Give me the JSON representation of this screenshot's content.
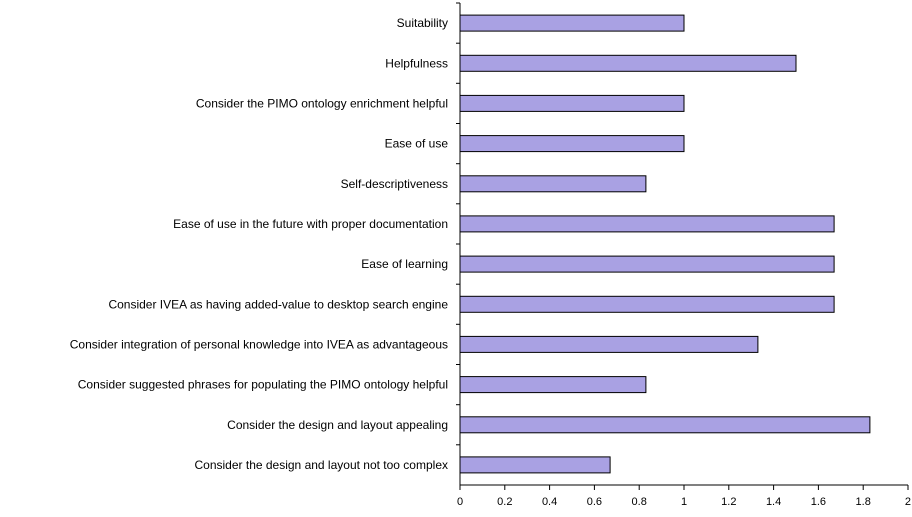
{
  "chart_data": {
    "type": "bar",
    "orientation": "horizontal",
    "categories": [
      "Suitability",
      "Helpfulness",
      "Consider the PIMO ontology enrichment helpful",
      "Ease of use",
      "Self-descriptiveness",
      "Ease of use in the future with proper documentation",
      "Ease of learning",
      "Consider IVEA as having added-value to desktop search engine",
      "Consider integration of personal knowledge into IVEA as advantageous",
      "Consider suggested phrases for populating the PIMO ontology helpful",
      "Consider the design and layout appealing",
      "Consider the design and layout not too complex"
    ],
    "values": [
      1.0,
      1.5,
      1.0,
      1.0,
      0.83,
      1.67,
      1.67,
      1.67,
      1.33,
      0.83,
      1.83,
      0.67
    ],
    "xlim": [
      0,
      2
    ],
    "xticks": [
      0,
      0.2,
      0.4,
      0.6,
      0.8,
      1,
      1.2,
      1.4,
      1.6,
      1.8,
      2
    ],
    "title": "",
    "xlabel": "",
    "ylabel": "",
    "grid": false,
    "legend": "none",
    "colors": {
      "bar_fill": "#a9a1e3",
      "bar_stroke": "#000000",
      "axis": "#000000"
    }
  }
}
